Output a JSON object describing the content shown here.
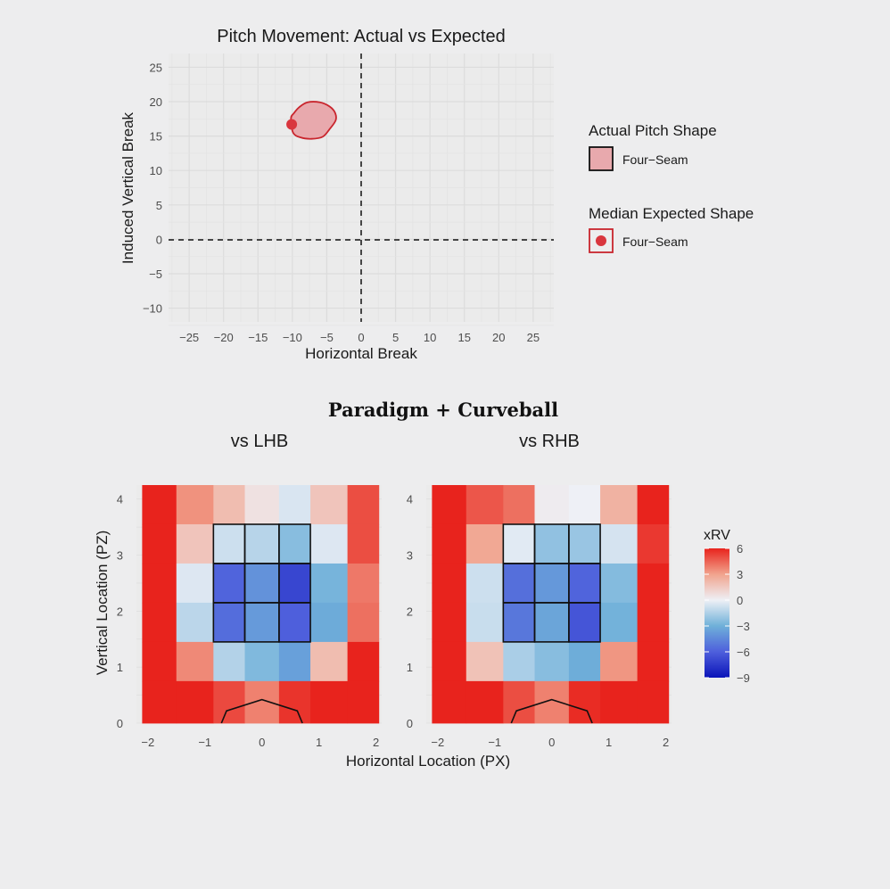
{
  "chart_data": [
    {
      "type": "scatter",
      "title": "Pitch Movement: Actual vs Expected",
      "xlabel": "Horizontal Break",
      "ylabel": "Induced Vertical Break",
      "xlim": [
        -28,
        28
      ],
      "ylim": [
        -12,
        27
      ],
      "xticks": [
        "−25",
        "−20",
        "−15",
        "−10",
        "−5",
        "0",
        "5",
        "10",
        "15",
        "20",
        "25"
      ],
      "yticks": [
        "25",
        "20",
        "15",
        "10",
        "5",
        "0",
        "−5",
        "−10"
      ],
      "xtick_values": [
        -25,
        -20,
        -15,
        -10,
        -5,
        0,
        5,
        10,
        15,
        20,
        25
      ],
      "ytick_values": [
        25,
        20,
        15,
        10,
        5,
        0,
        -5,
        -10
      ],
      "grid": true,
      "reference_lines": {
        "x": 0,
        "y": 0,
        "style": "dashed"
      },
      "actual_shape": {
        "name": "Four−Seam",
        "color": "#d9363e",
        "outline": [
          [
            -10.2,
            17.6
          ],
          [
            -9.9,
            15.5
          ],
          [
            -8.8,
            14.8
          ],
          [
            -7.2,
            14.6
          ],
          [
            -5.6,
            14.9
          ],
          [
            -4.6,
            16.0
          ],
          [
            -3.7,
            17.3
          ],
          [
            -3.8,
            18.4
          ],
          [
            -4.6,
            19.3
          ],
          [
            -6.0,
            19.9
          ],
          [
            -7.8,
            19.9
          ],
          [
            -9.0,
            19.2
          ],
          [
            -9.8,
            18.3
          ]
        ]
      },
      "expected_point": {
        "name": "Four−Seam",
        "x": -10.1,
        "y": 16.7,
        "color": "#d9363e"
      },
      "legend": {
        "placement": "right",
        "groups": [
          {
            "title": "Actual Pitch Shape",
            "label": "Four−Seam"
          },
          {
            "title": "Median Expected Shape",
            "label": "Four−Seam"
          }
        ]
      }
    },
    {
      "type": "heatmap",
      "suptitle": "Paradigm + Curveball",
      "xlabel": "Horizontal Location (PX)",
      "ylabel": "Vertical Location (PZ)",
      "xlim": [
        -2.2,
        2.1
      ],
      "ylim": [
        0,
        4.25
      ],
      "xticks": [
        "−2",
        "−1",
        "0",
        "1",
        "2"
      ],
      "yticks": [
        "4",
        "3",
        "2",
        "1",
        "0"
      ],
      "xtick_values": [
        -2,
        -1,
        0,
        1,
        2
      ],
      "ytick_values": [
        4,
        3,
        2,
        1,
        0
      ],
      "x_edges": [
        -2.1,
        -1.5,
        -0.85,
        -0.3,
        0.3,
        0.85,
        1.5,
        2.05
      ],
      "y_edges": [
        0,
        0.75,
        1.45,
        2.15,
        2.85,
        3.55,
        4.25
      ],
      "strike_zone": {
        "cols": [
          2,
          5
        ],
        "rows": [
          1,
          4
        ]
      },
      "home_plate": [
        [
          -0.71,
          0
        ],
        [
          -0.62,
          0.22
        ],
        [
          0,
          0.42
        ],
        [
          0.62,
          0.22
        ],
        [
          0.71,
          0
        ]
      ],
      "colorbar": {
        "title": "xRV",
        "min": -9,
        "max": 6,
        "ticks": [
          "6",
          "3",
          "0",
          "−3",
          "−6",
          "−9"
        ],
        "tick_values": [
          6,
          3,
          0,
          -3,
          -6,
          -9
        ]
      },
      "panels": [
        {
          "title": "vs LHB",
          "values": [
            [
              6,
              3.4,
              2.0,
              0.6,
              -0.5,
              1.7,
              5.0
            ],
            [
              6,
              1.7,
              -0.8,
              -1.3,
              -2.4,
              -0.4,
              5.0
            ],
            [
              6,
              -0.4,
              -5.8,
              -4.1,
              -7.0,
              -2.8,
              4.0
            ],
            [
              6,
              -1.2,
              -5.5,
              -3.8,
              -6.0,
              -3.2,
              4.2
            ],
            [
              6,
              3.6,
              -1.4,
              -2.6,
              -3.6,
              2.0,
              6.0
            ],
            [
              6,
              6.0,
              5.1,
              3.8,
              5.6,
              6.0,
              6.0
            ]
          ]
        },
        {
          "title": "vs RHB",
          "values": [
            [
              6,
              4.8,
              4.2,
              0.2,
              0,
              2.4,
              6.0
            ],
            [
              6,
              2.8,
              -0.3,
              -2.2,
              -2.0,
              -0.6,
              5.5
            ],
            [
              6,
              -0.8,
              -5.4,
              -3.9,
              -5.8,
              -2.5,
              6.0
            ],
            [
              6,
              -0.9,
              -5.1,
              -3.4,
              -6.4,
              -2.9,
              6.0
            ],
            [
              6,
              1.8,
              -1.6,
              -2.4,
              -3.1,
              3.3,
              6.0
            ],
            [
              6,
              6.0,
              5.0,
              3.8,
              5.8,
              6.0,
              6.0
            ]
          ]
        }
      ]
    }
  ]
}
